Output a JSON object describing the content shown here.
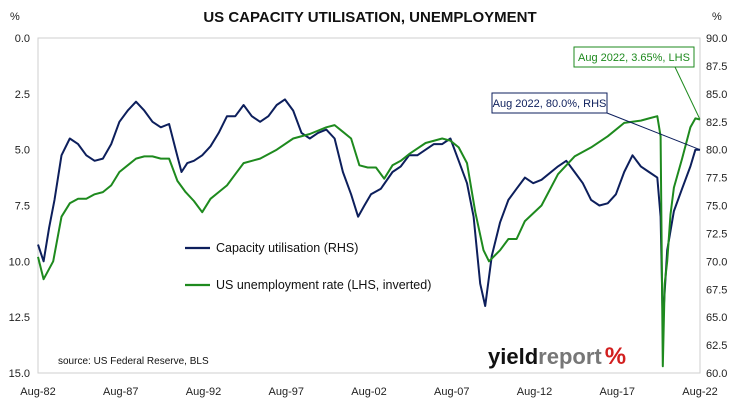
{
  "chart_data": {
    "type": "line",
    "title": "US CAPACITY UTILISATION, UNEMPLOYMENT",
    "source": "source: US Federal Reserve, BLS",
    "logo": {
      "part1": "yield",
      "part2": "report",
      "part3": "%"
    },
    "left_axis": {
      "unit": "%",
      "inverted": true,
      "range": [
        0,
        15
      ],
      "ticks": [
        "0.0",
        "2.5",
        "5.0",
        "7.5",
        "10.0",
        "12.5",
        "15.0"
      ]
    },
    "right_axis": {
      "unit": "%",
      "range": [
        60,
        90
      ],
      "ticks": [
        "60.0",
        "62.5",
        "65.0",
        "67.5",
        "70.0",
        "72.5",
        "75.0",
        "77.5",
        "80.0",
        "82.5",
        "85.0",
        "87.5",
        "90.0"
      ]
    },
    "x_axis": {
      "range": [
        1982.58,
        2022.58
      ],
      "ticks": [
        "Aug-82",
        "Aug-87",
        "Aug-92",
        "Aug-97",
        "Aug-02",
        "Aug-07",
        "Aug-12",
        "Aug-17",
        "Aug-22"
      ]
    },
    "grid": false,
    "legend_placement": "center",
    "series": [
      {
        "name": "Capacity utilisation (RHS)",
        "axis": "right",
        "color": "#0d1f5c",
        "x": [
          1982.58,
          1982.92,
          1983.25,
          1983.58,
          1984.0,
          1984.5,
          1985.0,
          1985.5,
          1986.0,
          1986.5,
          1987.0,
          1987.5,
          1988.0,
          1988.5,
          1989.0,
          1989.5,
          1990.0,
          1990.5,
          1990.9,
          1991.25,
          1991.6,
          1992.0,
          1992.5,
          1993.0,
          1993.5,
          1994.0,
          1994.5,
          1995.0,
          1995.5,
          1996.0,
          1996.5,
          1997.0,
          1997.5,
          1998.0,
          1998.5,
          1999.0,
          1999.5,
          2000.0,
          2000.5,
          2001.0,
          2001.5,
          2001.92,
          2002.3,
          2002.7,
          2003.3,
          2004.0,
          2004.5,
          2005.0,
          2005.5,
          2006.0,
          2006.5,
          2007.0,
          2007.5,
          2008.0,
          2008.5,
          2008.9,
          2009.3,
          2009.6,
          2010.0,
          2010.5,
          2011.0,
          2011.5,
          2012.0,
          2012.5,
          2013.0,
          2014.0,
          2014.5,
          2015.0,
          2015.5,
          2016.0,
          2016.5,
          2017.0,
          2017.5,
          2018.0,
          2018.5,
          2019.0,
          2019.5,
          2020.0,
          2020.2,
          2020.33,
          2020.6,
          2021.0,
          2021.5,
          2022.0,
          2022.3,
          2022.58
        ],
        "values": [
          71.5,
          70.0,
          73.0,
          75.5,
          79.5,
          81.0,
          80.5,
          79.5,
          79.0,
          79.2,
          80.5,
          82.5,
          83.5,
          84.3,
          83.5,
          82.5,
          82.0,
          82.3,
          80.0,
          78.0,
          78.8,
          79.0,
          79.5,
          80.3,
          81.5,
          83.0,
          83.0,
          84.0,
          83.0,
          82.5,
          83.0,
          84.0,
          84.5,
          83.5,
          81.5,
          81.0,
          81.5,
          81.8,
          81.0,
          78.0,
          76.0,
          74.0,
          75.0,
          76.0,
          76.5,
          78.0,
          78.5,
          79.5,
          79.5,
          80.0,
          80.5,
          80.5,
          81.0,
          79.0,
          77.0,
          74.0,
          68.0,
          66.0,
          70.5,
          73.5,
          75.5,
          76.5,
          77.5,
          77.0,
          77.3,
          78.5,
          79.0,
          78.0,
          77.0,
          75.5,
          75.0,
          75.2,
          76.0,
          78.0,
          79.5,
          78.5,
          78.0,
          77.5,
          74.0,
          64.5,
          71.0,
          74.5,
          76.5,
          78.5,
          80.0,
          80.0
        ]
      },
      {
        "name": "US unemployment rate (LHS, inverted)",
        "axis": "left",
        "color": "#1e8a1e",
        "x": [
          1982.58,
          1982.92,
          1983.5,
          1984.0,
          1984.5,
          1985.0,
          1985.5,
          1986.0,
          1986.5,
          1987.0,
          1987.5,
          1988.0,
          1988.5,
          1989.0,
          1989.5,
          1990.0,
          1990.5,
          1991.0,
          1991.5,
          1992.0,
          1992.5,
          1993.0,
          1993.5,
          1994.0,
          1994.5,
          1995.0,
          1996.0,
          1997.0,
          1998.0,
          1999.0,
          2000.0,
          2000.5,
          2001.0,
          2001.5,
          2002.0,
          2002.5,
          2003.0,
          2003.5,
          2004.0,
          2004.5,
          2005.0,
          2006.0,
          2007.0,
          2007.5,
          2008.0,
          2008.5,
          2009.0,
          2009.5,
          2009.83,
          2010.5,
          2011.0,
          2011.5,
          2012.0,
          2013.0,
          2014.0,
          2015.0,
          2016.0,
          2017.0,
          2018.0,
          2019.0,
          2019.5,
          2020.0,
          2020.2,
          2020.33,
          2020.45,
          2020.6,
          2020.8,
          2021.0,
          2021.5,
          2022.0,
          2022.3,
          2022.58
        ],
        "values": [
          9.8,
          10.8,
          10.0,
          8.0,
          7.4,
          7.2,
          7.2,
          7.0,
          6.9,
          6.6,
          6.0,
          5.7,
          5.4,
          5.3,
          5.3,
          5.4,
          5.4,
          6.4,
          6.9,
          7.3,
          7.8,
          7.2,
          6.9,
          6.6,
          6.1,
          5.6,
          5.4,
          5.0,
          4.5,
          4.3,
          4.0,
          3.9,
          4.2,
          4.5,
          5.7,
          5.8,
          5.8,
          6.3,
          5.7,
          5.5,
          5.2,
          4.7,
          4.5,
          4.6,
          4.9,
          5.6,
          7.8,
          9.5,
          10.0,
          9.5,
          9.0,
          9.0,
          8.2,
          7.5,
          6.1,
          5.3,
          4.9,
          4.4,
          3.8,
          3.7,
          3.6,
          3.5,
          4.4,
          14.7,
          11.0,
          10.0,
          7.9,
          6.7,
          5.4,
          4.0,
          3.6,
          3.65
        ]
      }
    ],
    "annotations": [
      {
        "text": "Aug 2022, 80.0%, RHS",
        "series": 0,
        "x": 2022.58,
        "y": 80.0
      },
      {
        "text": "Aug 2022, 3.65%, LHS",
        "series": 1,
        "x": 2022.58,
        "y": 3.65
      }
    ]
  }
}
